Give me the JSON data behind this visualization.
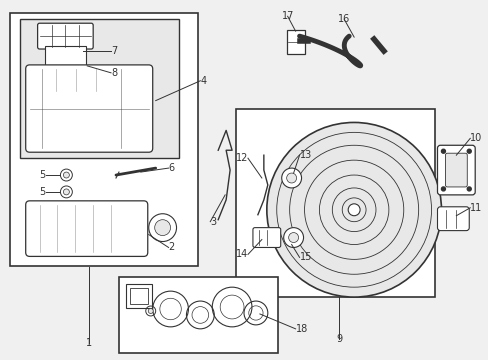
{
  "bg_color": "#f0f0f0",
  "line_color": "#333333",
  "box_bg": "#e8e8e8",
  "white": "#ffffff"
}
